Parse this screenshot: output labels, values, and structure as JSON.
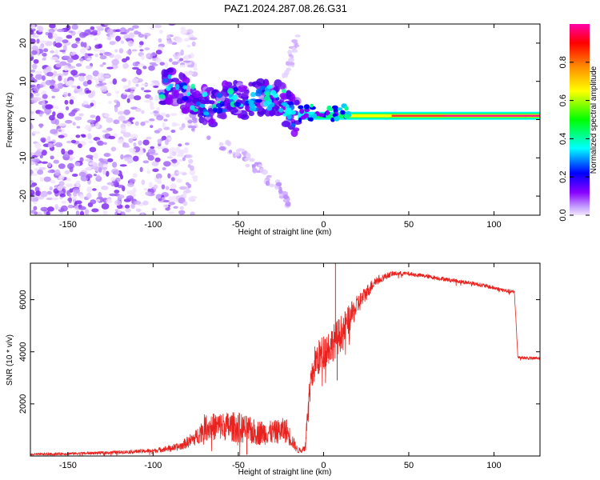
{
  "title": "PAZ1.2024.287.08.26.G31",
  "chart_data": [
    {
      "type": "heatmap",
      "xlabel": "Height of straight line (km)",
      "ylabel": "Frequency (Hz)",
      "xlim": [
        -172,
        127
      ],
      "ylim": [
        -25,
        25
      ],
      "xticks": [
        -150,
        -100,
        -50,
        0,
        50,
        100
      ],
      "yticks": [
        -20,
        -10,
        0,
        10,
        20
      ],
      "colorbar": {
        "label": "Normalized spectral amplitude",
        "range": [
          0,
          1
        ],
        "ticks": [
          0.0,
          0.2,
          0.4,
          0.6,
          0.8
        ],
        "colors": [
          "#f2e6ff",
          "#8800ff",
          "#0000ff",
          "#00ffff",
          "#00ff00",
          "#ffff00",
          "#ff8800",
          "#ff0000",
          "#ff00aa"
        ]
      },
      "features": [
        {
          "name": "noise",
          "x_range": [
            -172,
            -85
          ],
          "freq_range": [
            -25,
            25
          ],
          "amplitude": 0.05
        },
        {
          "name": "signal-descent",
          "x": [
            -95,
            -85,
            -75,
            -65,
            -55,
            -45,
            -35,
            -25,
            -15
          ],
          "freq": [
            9,
            8,
            5,
            3,
            6,
            5,
            6,
            5,
            0
          ],
          "amplitude": 0.3
        },
        {
          "name": "image-branch",
          "x": [
            -80,
            -60,
            -45,
            -35,
            -25,
            -20
          ],
          "freq": [
            0,
            -6,
            -10,
            -15,
            -18,
            -22
          ],
          "amplitude": 0.05
        },
        {
          "name": "image-branch-up",
          "x": [
            -25,
            -20,
            -15
          ],
          "freq": [
            5,
            15,
            22
          ],
          "amplitude": 0.05
        },
        {
          "name": "carrier",
          "x_range": [
            -15,
            127
          ],
          "freq": 1,
          "amplitude": 0.9
        }
      ]
    },
    {
      "type": "line",
      "xlabel": "Height of straight line (km)",
      "ylabel": "SNR (10 * v/v)",
      "xlim": [
        -172,
        127
      ],
      "ylim": [
        0,
        7400
      ],
      "xticks": [
        -150,
        -100,
        -50,
        0,
        50,
        100
      ],
      "yticks": [
        2000,
        4000,
        6000
      ],
      "color": "#e8231f",
      "envelope": {
        "x": [
          -172,
          -130,
          -100,
          -85,
          -75,
          -70,
          -60,
          -50,
          -40,
          -30,
          -22,
          -15,
          -11,
          -8,
          -5,
          0,
          5,
          10,
          20,
          30,
          40,
          50,
          60,
          70,
          80,
          90,
          100,
          110,
          112,
          114,
          120,
          127
        ],
        "y": [
          60,
          120,
          200,
          350,
          700,
          1100,
          1150,
          1100,
          900,
          900,
          1000,
          200,
          300,
          2600,
          3600,
          4000,
          4300,
          4700,
          5800,
          6700,
          7000,
          7000,
          6900,
          6800,
          6700,
          6600,
          6450,
          6300,
          6300,
          3800,
          3750,
          3750
        ],
        "spread": [
          40,
          60,
          80,
          150,
          300,
          500,
          550,
          600,
          500,
          450,
          500,
          100,
          150,
          500,
          700,
          700,
          700,
          700,
          400,
          200,
          100,
          80,
          80,
          80,
          80,
          80,
          80,
          80,
          80,
          60,
          60,
          60
        ]
      },
      "spikes": [
        {
          "x": 7,
          "y": 7400
        },
        {
          "x": 8,
          "y": 2900
        },
        {
          "x": -45,
          "y": 50
        }
      ]
    }
  ]
}
